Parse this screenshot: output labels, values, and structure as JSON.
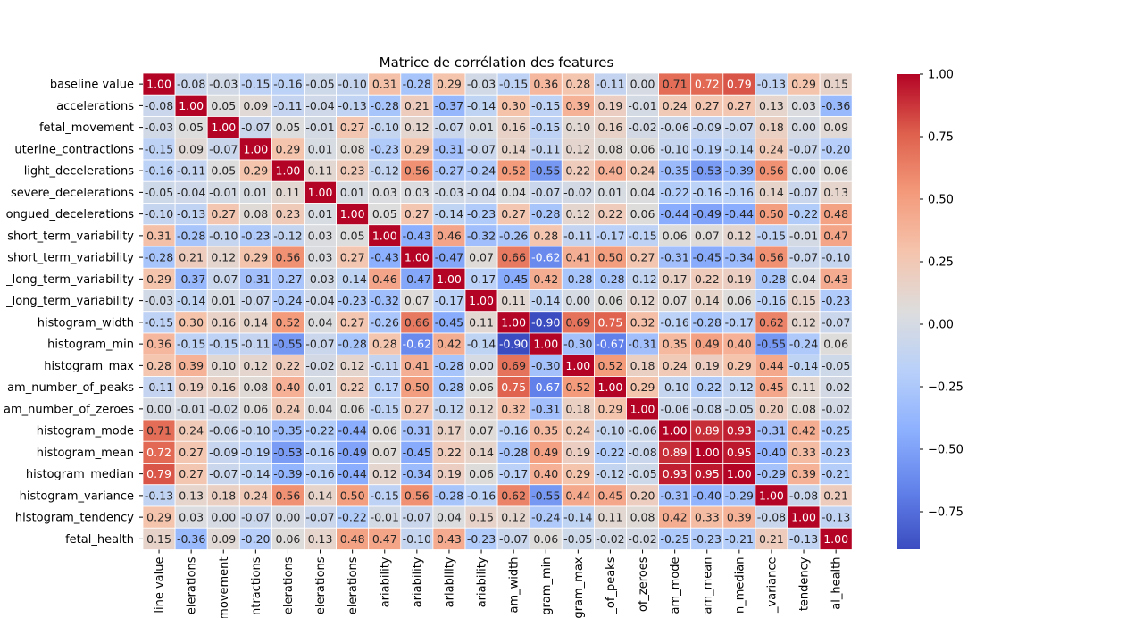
{
  "chart_data": {
    "type": "heatmap",
    "title": "Matrice de corrélation des features",
    "row_labels": [
      "baseline value",
      "accelerations",
      "fetal_movement",
      "uterine_contractions",
      "light_decelerations",
      "severe_decelerations",
      "ongued_decelerations",
      "short_term_variability",
      "short_term_variability",
      "_long_term_variability",
      "_long_term_variability",
      "histogram_width",
      "histogram_min",
      "histogram_max",
      "am_number_of_peaks",
      "am_number_of_zeroes",
      "histogram_mode",
      "histogram_mean",
      "histogram_median",
      "histogram_variance",
      "histogram_tendency",
      "fetal_health"
    ],
    "col_labels": [
      "line value",
      "elerations",
      "movement",
      "ntractions",
      "elerations",
      "elerations",
      "elerations",
      "ariability",
      "ariability",
      "ariability",
      "ariability",
      "am_width",
      "gram_min",
      "gram_max",
      "_of_peaks",
      "of_zeroes",
      "am_mode",
      "am_mean",
      "n_median",
      "_variance",
      "tendency",
      "al_health"
    ],
    "values": [
      [
        1.0,
        -0.08,
        -0.03,
        -0.15,
        -0.16,
        -0.05,
        -0.1,
        0.31,
        -0.28,
        0.29,
        -0.03,
        -0.15,
        0.36,
        0.28,
        -0.11,
        -0.0,
        0.71,
        0.72,
        0.79,
        -0.13,
        0.29,
        0.15
      ],
      [
        -0.08,
        1.0,
        0.05,
        0.09,
        -0.11,
        -0.04,
        -0.13,
        -0.28,
        0.21,
        -0.37,
        -0.14,
        0.3,
        -0.15,
        0.39,
        0.19,
        -0.01,
        0.24,
        0.27,
        0.27,
        0.13,
        0.03,
        -0.36
      ],
      [
        -0.03,
        0.05,
        1.0,
        -0.07,
        0.05,
        -0.01,
        0.27,
        -0.1,
        0.12,
        -0.07,
        0.01,
        0.16,
        -0.15,
        0.1,
        0.16,
        -0.02,
        -0.06,
        -0.09,
        -0.07,
        0.18,
        -0.0,
        0.09
      ],
      [
        -0.15,
        0.09,
        -0.07,
        1.0,
        0.29,
        0.01,
        0.08,
        -0.23,
        0.29,
        -0.31,
        -0.07,
        0.14,
        -0.11,
        0.12,
        0.08,
        0.06,
        -0.1,
        -0.19,
        -0.14,
        0.24,
        -0.07,
        -0.2
      ],
      [
        -0.16,
        -0.11,
        0.05,
        0.29,
        1.0,
        0.11,
        0.23,
        -0.12,
        0.56,
        -0.27,
        -0.24,
        0.52,
        -0.55,
        0.22,
        0.4,
        0.24,
        -0.35,
        -0.53,
        -0.39,
        0.56,
        0.0,
        0.06
      ],
      [
        -0.05,
        -0.04,
        -0.01,
        0.01,
        0.11,
        1.0,
        0.01,
        0.03,
        0.03,
        -0.03,
        -0.04,
        0.04,
        -0.07,
        -0.02,
        0.01,
        0.04,
        -0.22,
        -0.16,
        -0.16,
        0.14,
        -0.07,
        0.13
      ],
      [
        -0.1,
        -0.13,
        0.27,
        0.08,
        0.23,
        0.01,
        1.0,
        0.05,
        0.27,
        -0.14,
        -0.23,
        0.27,
        -0.28,
        0.12,
        0.22,
        0.06,
        -0.44,
        -0.49,
        -0.44,
        0.5,
        -0.22,
        0.48
      ],
      [
        0.31,
        -0.28,
        -0.1,
        -0.23,
        -0.12,
        0.03,
        0.05,
        1.0,
        -0.43,
        0.46,
        -0.32,
        -0.26,
        0.28,
        -0.11,
        -0.17,
        -0.15,
        0.06,
        0.07,
        0.12,
        -0.15,
        -0.01,
        0.47
      ],
      [
        -0.28,
        0.21,
        0.12,
        0.29,
        0.56,
        0.03,
        0.27,
        -0.43,
        1.0,
        -0.47,
        0.07,
        0.66,
        -0.62,
        0.41,
        0.5,
        0.27,
        -0.31,
        -0.45,
        -0.34,
        0.56,
        -0.07,
        -0.1
      ],
      [
        0.29,
        -0.37,
        -0.07,
        -0.31,
        -0.27,
        -0.03,
        -0.14,
        0.46,
        -0.47,
        1.0,
        -0.17,
        -0.45,
        0.42,
        -0.28,
        -0.28,
        -0.12,
        0.17,
        0.22,
        0.19,
        -0.28,
        0.04,
        0.43
      ],
      [
        -0.03,
        -0.14,
        0.01,
        -0.07,
        -0.24,
        -0.04,
        -0.23,
        -0.32,
        0.07,
        -0.17,
        1.0,
        0.11,
        -0.14,
        0.0,
        0.06,
        0.12,
        0.07,
        0.14,
        0.06,
        -0.16,
        0.15,
        -0.23
      ],
      [
        -0.15,
        0.3,
        0.16,
        0.14,
        0.52,
        0.04,
        0.27,
        -0.26,
        0.66,
        -0.45,
        0.11,
        1.0,
        -0.9,
        0.69,
        0.75,
        0.32,
        -0.16,
        -0.28,
        -0.17,
        0.62,
        0.12,
        -0.07
      ],
      [
        0.36,
        -0.15,
        -0.15,
        -0.11,
        -0.55,
        -0.07,
        -0.28,
        0.28,
        -0.62,
        0.42,
        -0.14,
        -0.9,
        1.0,
        -0.3,
        -0.67,
        -0.31,
        0.35,
        0.49,
        0.4,
        -0.55,
        -0.24,
        0.06
      ],
      [
        0.28,
        0.39,
        0.1,
        0.12,
        0.22,
        -0.02,
        0.12,
        -0.11,
        0.41,
        -0.28,
        0.0,
        0.69,
        -0.3,
        1.0,
        0.52,
        0.18,
        0.24,
        0.19,
        0.29,
        0.44,
        -0.14,
        -0.05
      ],
      [
        -0.11,
        0.19,
        0.16,
        0.08,
        0.4,
        0.01,
        0.22,
        -0.17,
        0.5,
        -0.28,
        0.06,
        0.75,
        -0.67,
        0.52,
        1.0,
        0.29,
        -0.1,
        -0.22,
        -0.12,
        0.45,
        0.11,
        -0.02
      ],
      [
        -0.0,
        -0.01,
        -0.02,
        0.06,
        0.24,
        0.04,
        0.06,
        -0.15,
        0.27,
        -0.12,
        0.12,
        0.32,
        -0.31,
        0.18,
        0.29,
        1.0,
        -0.06,
        -0.08,
        -0.05,
        0.2,
        0.08,
        -0.02
      ],
      [
        0.71,
        0.24,
        -0.06,
        -0.1,
        -0.35,
        -0.22,
        -0.44,
        0.06,
        -0.31,
        0.17,
        0.07,
        -0.16,
        0.35,
        0.24,
        -0.1,
        -0.06,
        1.0,
        0.89,
        0.93,
        -0.31,
        0.42,
        -0.25
      ],
      [
        0.72,
        0.27,
        -0.09,
        -0.19,
        -0.53,
        -0.16,
        -0.49,
        0.07,
        -0.45,
        0.22,
        0.14,
        -0.28,
        0.49,
        0.19,
        -0.22,
        -0.08,
        0.89,
        1.0,
        0.95,
        -0.4,
        0.33,
        -0.23
      ],
      [
        0.79,
        0.27,
        -0.07,
        -0.14,
        -0.39,
        -0.16,
        -0.44,
        0.12,
        -0.34,
        0.19,
        0.06,
        -0.17,
        0.4,
        0.29,
        -0.12,
        -0.05,
        0.93,
        0.95,
        1.0,
        -0.29,
        0.39,
        -0.21
      ],
      [
        -0.13,
        0.13,
        0.18,
        0.24,
        0.56,
        0.14,
        0.5,
        -0.15,
        0.56,
        -0.28,
        -0.16,
        0.62,
        -0.55,
        0.44,
        0.45,
        0.2,
        -0.31,
        -0.4,
        -0.29,
        1.0,
        -0.08,
        0.21
      ],
      [
        0.29,
        0.03,
        -0.0,
        -0.07,
        0.0,
        -0.07,
        -0.22,
        -0.01,
        -0.07,
        0.04,
        0.15,
        0.12,
        -0.24,
        -0.14,
        0.11,
        0.08,
        0.42,
        0.33,
        0.39,
        -0.08,
        1.0,
        -0.13
      ],
      [
        0.15,
        -0.36,
        0.09,
        -0.2,
        0.06,
        0.13,
        0.48,
        0.47,
        -0.1,
        0.43,
        -0.23,
        -0.07,
        0.06,
        -0.05,
        -0.02,
        -0.02,
        -0.25,
        -0.23,
        -0.21,
        0.21,
        -0.13,
        1.0
      ]
    ],
    "colormap": "coolwarm",
    "vmin": -0.9,
    "vmax": 1.0,
    "colorbar_ticks": [
      "1.00",
      "0.75",
      "0.50",
      "0.25",
      "0.00",
      "−0.25",
      "−0.50",
      "−0.75"
    ],
    "colorbar_tick_values": [
      1.0,
      0.75,
      0.5,
      0.25,
      0.0,
      -0.25,
      -0.5,
      -0.75
    ],
    "annotations": true,
    "grid": false,
    "legend": "colorbar-right"
  }
}
